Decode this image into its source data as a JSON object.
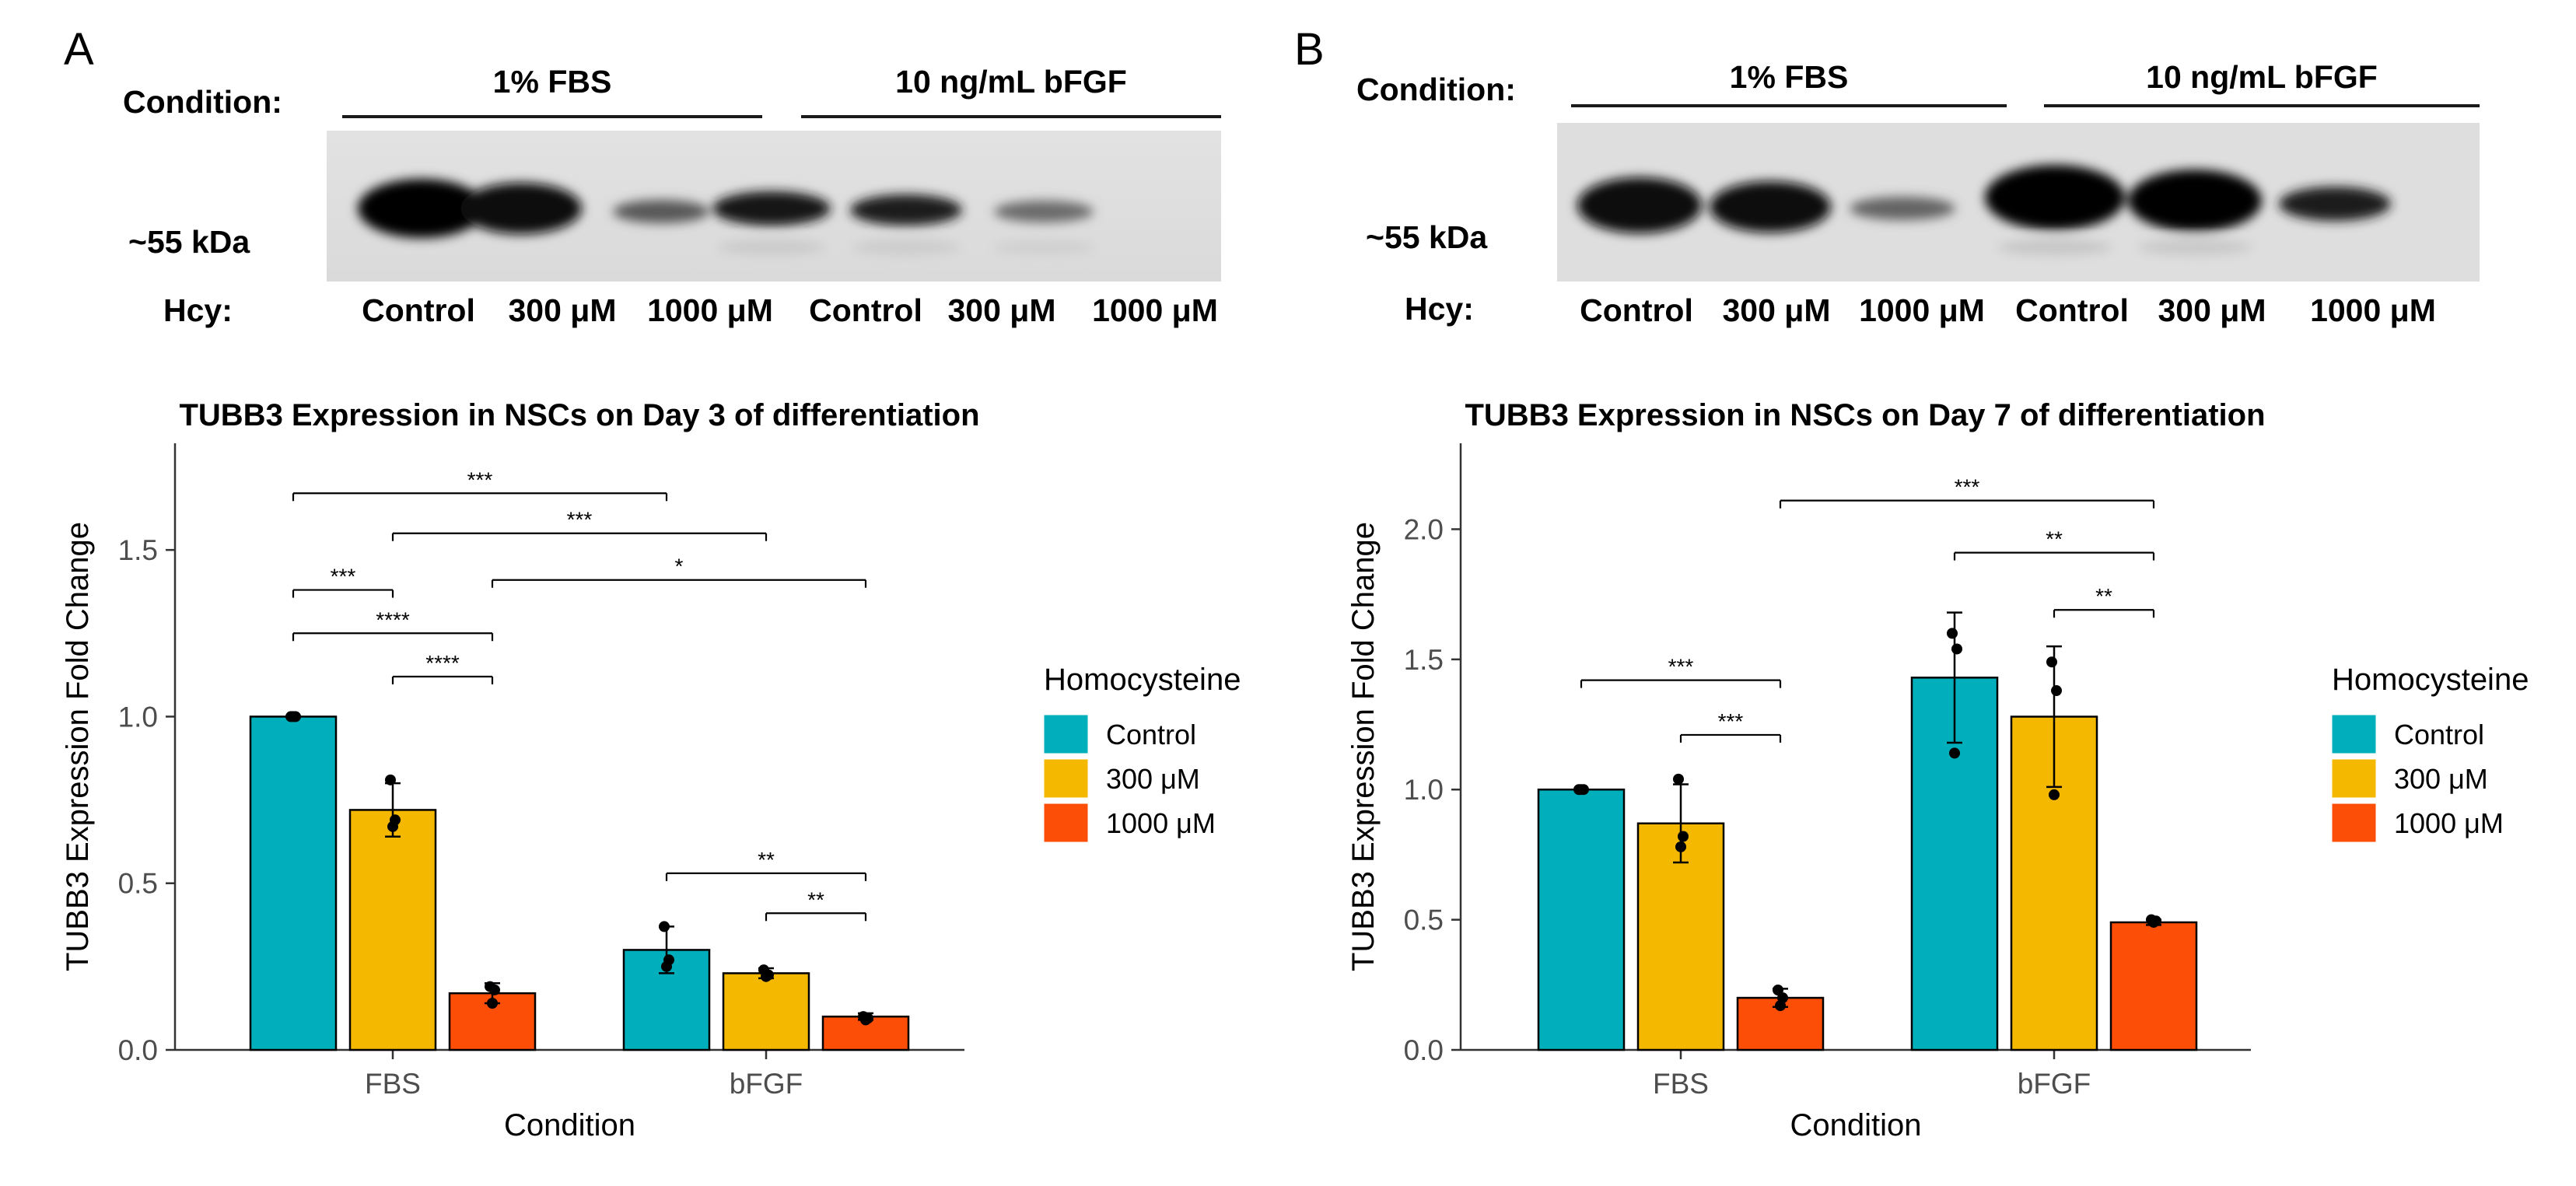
{
  "panels": [
    {
      "letter": "A",
      "blot": {
        "condition_label": "Condition:",
        "groups": [
          "1% FBS",
          "10 ng/mL bFGF"
        ],
        "band_label": "~55 kDa",
        "hcy_label": "Hcy:",
        "lanes": [
          "Control",
          "300 μM",
          "1000 μM",
          "Control",
          "300 μM",
          "1000 μM"
        ]
      }
    },
    {
      "letter": "B",
      "blot": {
        "condition_label": "Condition:",
        "groups": [
          "1% FBS",
          "10 ng/mL bFGF"
        ],
        "band_label": "~55 kDa",
        "hcy_label": "Hcy:",
        "lanes": [
          "Control",
          "300 μM",
          "1000 μM",
          "Control",
          "300 μM",
          "1000 μM"
        ]
      }
    }
  ],
  "colors": {
    "control": "#00AFBB",
    "hcy300": "#F5B800",
    "hcy1000": "#FC4E07",
    "axis": "#333333"
  },
  "chart_data": [
    {
      "type": "bar",
      "title": "TUBB3 Expression in NSCs on Day 3 of differentiation",
      "xlabel": "Condition",
      "ylabel": "TUBB3 Expression Fold Change",
      "categories": [
        "FBS",
        "bFGF"
      ],
      "ylim": [
        0,
        1.82
      ],
      "yticks": [
        0.0,
        0.5,
        1.0,
        1.5
      ],
      "ytick_labels": [
        "0.0",
        "0.5",
        "1.0",
        "1.5"
      ],
      "legend": {
        "title": "Homocysteine",
        "position": "right"
      },
      "series": [
        {
          "name": "Control",
          "values": [
            1.0,
            0.3
          ],
          "errors": [
            0.0,
            0.07
          ],
          "points": [
            [
              1.0,
              1.0,
              1.0
            ],
            [
              0.37,
              0.27,
              0.25
            ]
          ]
        },
        {
          "name": "300 μM",
          "values": [
            0.72,
            0.23
          ],
          "errors": [
            0.08,
            0.015
          ],
          "points": [
            [
              0.81,
              0.69,
              0.67
            ],
            [
              0.24,
              0.225,
              0.22
            ]
          ]
        },
        {
          "name": "1000 μM",
          "values": [
            0.17,
            0.1
          ],
          "errors": [
            0.03,
            0.01
          ],
          "points": [
            [
              0.19,
              0.18,
              0.14
            ],
            [
              0.1,
              0.095,
              0.09
            ]
          ]
        }
      ],
      "significance": [
        {
          "from": [
            0,
            0
          ],
          "to": [
            1,
            0
          ],
          "y": 1.67,
          "label": "***"
        },
        {
          "from": [
            0,
            1
          ],
          "to": [
            1,
            1
          ],
          "y": 1.55,
          "label": "***"
        },
        {
          "from": [
            0,
            0
          ],
          "to": [
            0,
            1
          ],
          "y": 1.38,
          "label": "***"
        },
        {
          "from": [
            0,
            2
          ],
          "to": [
            1,
            2
          ],
          "y": 1.41,
          "label": "*"
        },
        {
          "from": [
            0,
            0
          ],
          "to": [
            0,
            2
          ],
          "y": 1.25,
          "label": "****"
        },
        {
          "from": [
            0,
            1
          ],
          "to": [
            0,
            2
          ],
          "y": 1.12,
          "label": "****"
        },
        {
          "from": [
            1,
            0
          ],
          "to": [
            1,
            2
          ],
          "y": 0.53,
          "label": "**"
        },
        {
          "from": [
            1,
            1
          ],
          "to": [
            1,
            2
          ],
          "y": 0.41,
          "label": "**"
        }
      ]
    },
    {
      "type": "bar",
      "title": "TUBB3 Expression in NSCs on Day 7 of differentiation",
      "xlabel": "Condition",
      "ylabel": "TUBB3 Expression Fold Change",
      "categories": [
        "FBS",
        "bFGF"
      ],
      "ylim": [
        0,
        2.33
      ],
      "yticks": [
        0.0,
        0.5,
        1.0,
        1.5,
        2.0
      ],
      "ytick_labels": [
        "0.0",
        "0.5",
        "1.0",
        "1.5",
        "2.0"
      ],
      "legend": {
        "title": "Homocysteine",
        "position": "right"
      },
      "series": [
        {
          "name": "Control",
          "values": [
            1.0,
            1.43
          ],
          "errors": [
            0.0,
            0.25
          ],
          "points": [
            [
              1.0,
              1.0,
              1.0
            ],
            [
              1.6,
              1.54,
              1.14
            ]
          ]
        },
        {
          "name": "300 μM",
          "values": [
            0.87,
            1.28
          ],
          "errors": [
            0.15,
            0.27
          ],
          "points": [
            [
              1.04,
              0.82,
              0.78
            ],
            [
              1.49,
              1.38,
              0.98
            ]
          ]
        },
        {
          "name": "1000 μM",
          "values": [
            0.2,
            0.49
          ],
          "errors": [
            0.035,
            0.01
          ],
          "points": [
            [
              0.23,
              0.2,
              0.17
            ],
            [
              0.5,
              0.495,
              0.49
            ]
          ]
        }
      ],
      "significance": [
        {
          "from": [
            0,
            2
          ],
          "to": [
            1,
            2
          ],
          "y": 2.11,
          "label": "***"
        },
        {
          "from": [
            1,
            0
          ],
          "to": [
            1,
            2
          ],
          "y": 1.91,
          "label": "**"
        },
        {
          "from": [
            1,
            1
          ],
          "to": [
            1,
            2
          ],
          "y": 1.69,
          "label": "**"
        },
        {
          "from": [
            0,
            0
          ],
          "to": [
            0,
            2
          ],
          "y": 1.42,
          "label": "***"
        },
        {
          "from": [
            0,
            1
          ],
          "to": [
            0,
            2
          ],
          "y": 1.21,
          "label": "***"
        }
      ]
    }
  ]
}
